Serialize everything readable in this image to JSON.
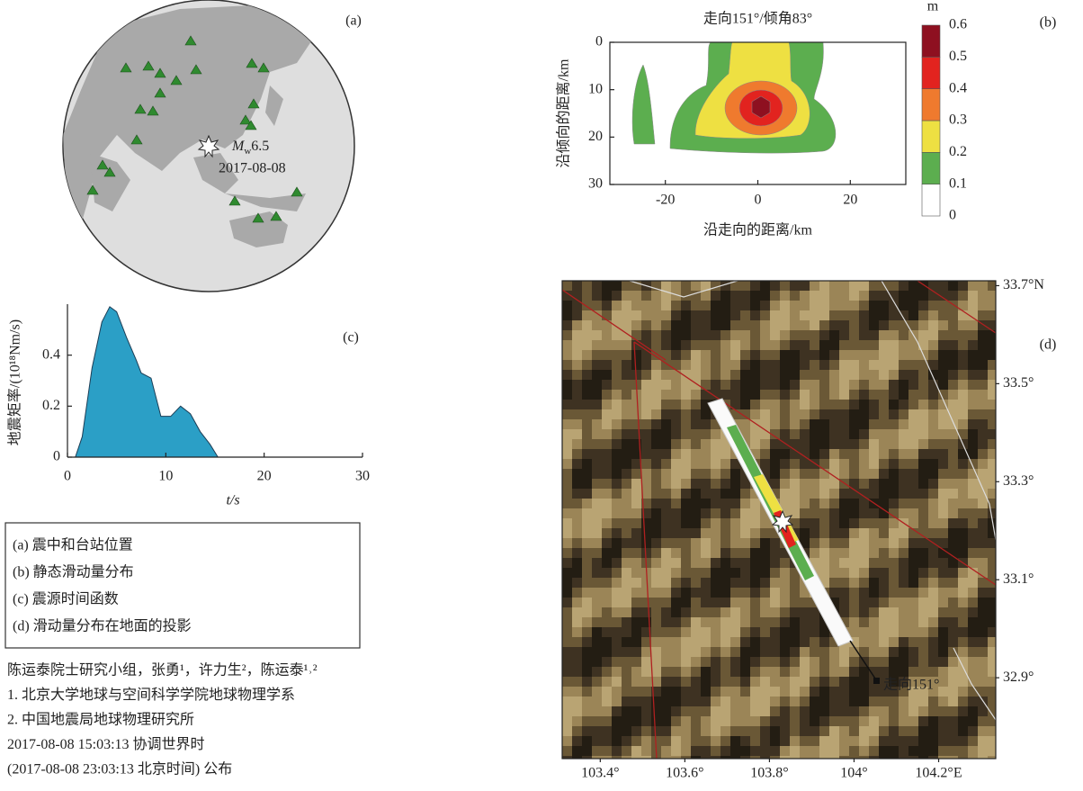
{
  "panel_labels": [
    "(a)",
    "(b)",
    "(c)",
    "(d)"
  ],
  "panel_a": {
    "magnitude_symbol": "M",
    "magnitude_sub": "w",
    "magnitude": "6.5",
    "date": "2017-08-08"
  },
  "chart_data": [
    {
      "type": "contour",
      "title": "走向151°/倾角83°",
      "xlabel": "沿走向的距离/km",
      "ylabel": "沿倾向的距离/km",
      "xlim": [
        -32,
        32
      ],
      "ylim": [
        0,
        30
      ],
      "y_inverted": true,
      "xticks": [
        -20,
        0,
        20
      ],
      "yticks": [
        0,
        10,
        20,
        30
      ],
      "colorbar": {
        "unit": "m",
        "levels": [
          0,
          0.1,
          0.2,
          0.3,
          0.4,
          0.5,
          0.6
        ],
        "colors": [
          "#ffffff",
          "#5cae4f",
          "#eee042",
          "#ef7a2e",
          "#e2231f",
          "#8e1020"
        ]
      }
    },
    {
      "type": "area",
      "xlabel": "t/s",
      "ylabel": "地震矩率/(10¹⁸Nm/s)",
      "color": "#2b9fc6",
      "x": [
        0.8,
        1.5,
        2.5,
        3.5,
        4.3,
        5,
        6,
        7,
        7.5,
        8.5,
        9.5,
        10.5,
        11.5,
        12.5,
        13.5,
        14.5,
        15.3
      ],
      "values": [
        0,
        0.08,
        0.35,
        0.53,
        0.59,
        0.57,
        0.47,
        0.38,
        0.33,
        0.31,
        0.16,
        0.16,
        0.2,
        0.17,
        0.1,
        0.05,
        0
      ],
      "xlim": [
        0,
        30
      ],
      "ylim": [
        0,
        0.6
      ],
      "xticks": [
        0,
        10,
        20,
        30
      ],
      "yticks": [
        0,
        0.2,
        0.4
      ]
    },
    {
      "type": "map",
      "xlim": [
        103.31,
        104.335
      ],
      "ylim": [
        32.735,
        33.71
      ],
      "xticks": [
        {
          "value": 103.4,
          "label": "103.4°"
        },
        {
          "value": 103.6,
          "label": "103.6°"
        },
        {
          "value": 103.8,
          "label": "103.8°"
        },
        {
          "value": 104,
          "label": "104°"
        },
        {
          "value": 104.2,
          "label": "104.2°E"
        }
      ],
      "yticks": [
        {
          "value": 32.9,
          "label": "32.9°"
        },
        {
          "value": 33.1,
          "label": "33.1°"
        },
        {
          "value": 33.3,
          "label": "33.3°"
        },
        {
          "value": 33.5,
          "label": "33.5°"
        },
        {
          "value": 33.7,
          "label": "33.7°N"
        }
      ],
      "annotations": [
        "走向151°"
      ]
    }
  ],
  "legend": [
    "(a) 震中和台站位置",
    "(b) 静态滑动量分布",
    "(c) 震源时间函数",
    "(d) 滑动量分布在地面的投影"
  ],
  "credits": [
    "陈运泰院士研究小组，张勇¹，许力生²，陈运泰¹˒²",
    "1. 北京大学地球与空间科学学院地球物理学系",
    "2. 中国地震局地球物理研究所",
    "2017-08-08  15:03:13 协调世界时",
    "(2017-08-08  23:03:13 北京时间) 公布"
  ]
}
